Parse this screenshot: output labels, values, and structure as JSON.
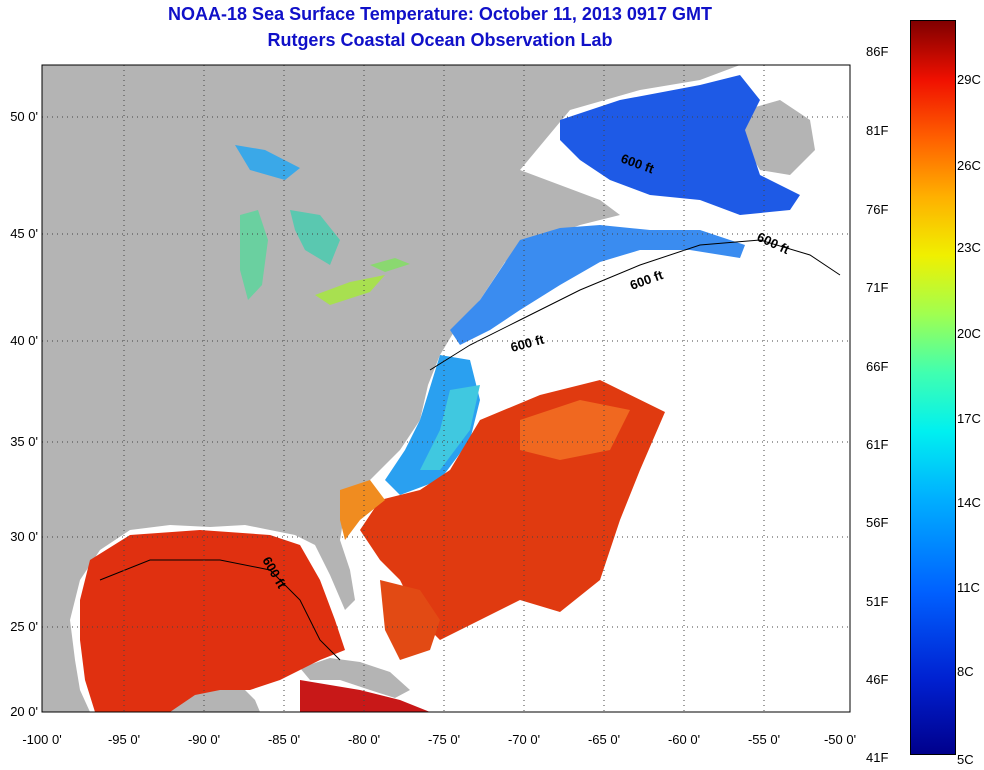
{
  "title": {
    "line1": "NOAA-18 Sea Surface Temperature:  October 11, 2013 0917 GMT",
    "line2": "Rutgers Coastal Ocean Observation Lab"
  },
  "map": {
    "longitude_ticks": [
      "-100 0'",
      "-95 0'",
      "-90 0'",
      "-85 0'",
      "-80 0'",
      "-75 0'",
      "-70 0'",
      "-65 0'",
      "-60 0'",
      "-55 0'",
      "-50 0'"
    ],
    "latitude_ticks": [
      "50 0'",
      "45 0'",
      "40 0'",
      "35 0'",
      "30 0'",
      "25 0'",
      "20 0'"
    ],
    "contour_label": "600 ft",
    "colors": {
      "land": "#b4b4b4",
      "cloud": "#ffffff",
      "warm": "#e03a10",
      "cool": "#1e5ae6"
    }
  },
  "colorbar": {
    "fahrenheit": [
      "86F",
      "81F",
      "76F",
      "71F",
      "66F",
      "61F",
      "56F",
      "51F",
      "46F",
      "41F"
    ],
    "celsius": [
      "29C",
      "26C",
      "23C",
      "20C",
      "17C",
      "14C",
      "11C",
      "8C",
      "5C"
    ]
  }
}
